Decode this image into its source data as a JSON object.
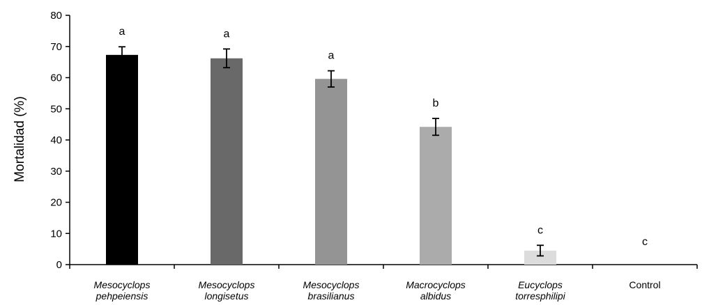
{
  "chart_data": {
    "type": "bar",
    "title": "",
    "xlabel": "",
    "ylabel": "Mortalidad (%)",
    "ylim": [
      0,
      80
    ],
    "yticks": [
      "0",
      "10",
      "20",
      "30",
      "40",
      "50",
      "60",
      "70",
      "80"
    ],
    "grid": false,
    "categories": [
      [
        "Mesocyclops",
        "pehpeiensis"
      ],
      [
        "Mesocyclops",
        "longisetus"
      ],
      [
        "Mesocyclops",
        "brasilianus"
      ],
      [
        "Macrocyclops",
        "albidus"
      ],
      [
        "Eucyclops",
        "torresphilipi"
      ],
      [
        "Control"
      ]
    ],
    "category_italic": [
      true,
      true,
      true,
      true,
      true,
      false
    ],
    "values": [
      67.3,
      66.2,
      59.6,
      44.2,
      4.5,
      0
    ],
    "errors": [
      2.6,
      3.0,
      2.6,
      2.7,
      1.7,
      0
    ],
    "significance_letters": [
      "a",
      "a",
      "a",
      "b",
      "c",
      "c"
    ],
    "bar_colors": [
      "#000000",
      "#696969",
      "#949494",
      "#ababab",
      "#dcdcdc",
      "#ffffff"
    ]
  }
}
